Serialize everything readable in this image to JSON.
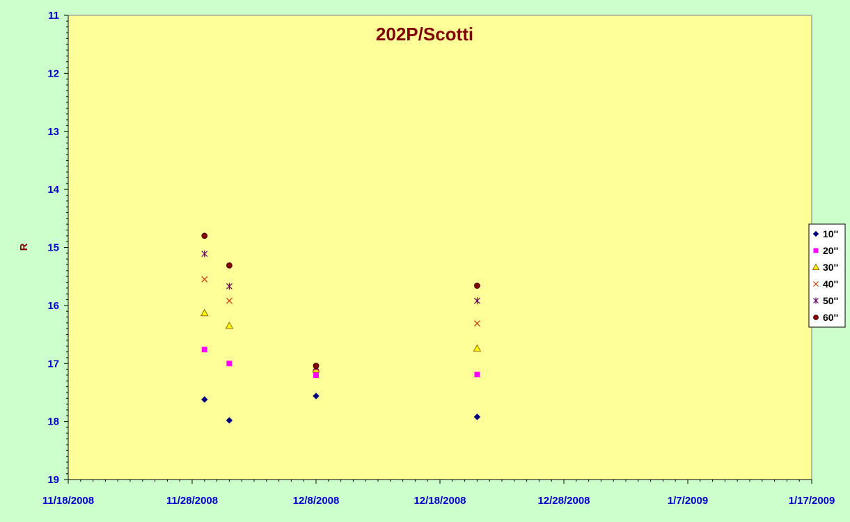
{
  "colors": {
    "page_background": "#ccffcc",
    "plot_background": "#ffff99",
    "axis_text": "#0000cc",
    "title_text": "#800000"
  },
  "chart_data": {
    "type": "scatter",
    "title": "202P/Scotti",
    "xlabel": "",
    "ylabel": "R",
    "x_axis": {
      "type": "date",
      "range": [
        "2008-11-18",
        "2009-01-17"
      ],
      "tick_labels": [
        "11/18/2008",
        "11/28/2008",
        "12/8/2008",
        "12/18/2008",
        "12/28/2008",
        "1/7/2009",
        "1/17/2009"
      ],
      "major_unit_days": 10,
      "minor_unit_days": 1
    },
    "y_axis": {
      "range": [
        11,
        19
      ],
      "reversed": true,
      "tick_labels": [
        "11",
        "12",
        "13",
        "14",
        "15",
        "16",
        "17",
        "18",
        "19"
      ],
      "minor_unit": 0.1
    },
    "grid": false,
    "legend_position": "right",
    "series": [
      {
        "name": "10''",
        "marker": "diamond",
        "color": "#000080",
        "points": [
          {
            "x": "2008-11-29",
            "y": 17.62
          },
          {
            "x": "2008-12-01",
            "y": 17.98
          },
          {
            "x": "2008-12-08",
            "y": 17.56
          },
          {
            "x": "2008-12-21",
            "y": 17.92
          }
        ]
      },
      {
        "name": "20''",
        "marker": "square",
        "color": "#ff00ff",
        "points": [
          {
            "x": "2008-11-29",
            "y": 16.76
          },
          {
            "x": "2008-12-01",
            "y": 17.0
          },
          {
            "x": "2008-12-08",
            "y": 17.2
          },
          {
            "x": "2008-12-21",
            "y": 17.19
          }
        ]
      },
      {
        "name": "30''",
        "marker": "triangle",
        "color": "#ffff00",
        "stroke": "#996600",
        "points": [
          {
            "x": "2008-11-29",
            "y": 16.13
          },
          {
            "x": "2008-12-01",
            "y": 16.35
          },
          {
            "x": "2008-12-08",
            "y": 17.1
          },
          {
            "x": "2008-12-21",
            "y": 16.74
          }
        ]
      },
      {
        "name": "40''",
        "marker": "x",
        "color": "#cc3300",
        "points": [
          {
            "x": "2008-11-29",
            "y": 15.55
          },
          {
            "x": "2008-12-01",
            "y": 15.92
          },
          {
            "x": "2008-12-08",
            "y": 17.08
          },
          {
            "x": "2008-12-21",
            "y": 16.31
          }
        ]
      },
      {
        "name": "50''",
        "marker": "star",
        "color": "#660066",
        "points": [
          {
            "x": "2008-11-29",
            "y": 15.11
          },
          {
            "x": "2008-12-01",
            "y": 15.67
          },
          {
            "x": "2008-12-08",
            "y": 17.06
          },
          {
            "x": "2008-12-21",
            "y": 15.92
          }
        ]
      },
      {
        "name": "60''",
        "marker": "circle",
        "color": "#800000",
        "points": [
          {
            "x": "2008-11-29",
            "y": 14.8
          },
          {
            "x": "2008-12-01",
            "y": 15.31
          },
          {
            "x": "2008-12-08",
            "y": 17.04
          },
          {
            "x": "2008-12-21",
            "y": 15.66
          }
        ]
      }
    ]
  }
}
